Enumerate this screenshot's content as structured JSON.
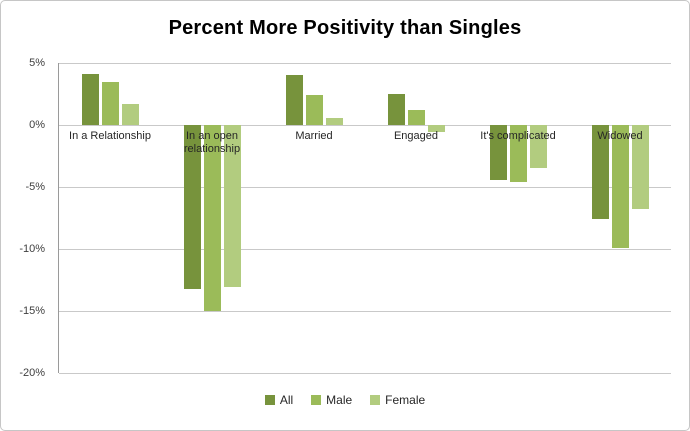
{
  "chart_data": {
    "type": "bar",
    "title": "Percent More Positivity than Singles",
    "categories": [
      "In a Relationship",
      "In an open relationship",
      "Married",
      "Engaged",
      "It's complicated",
      "Widowed"
    ],
    "series": [
      {
        "name": "All",
        "color": "#77933c",
        "values": [
          4.1,
          -13.2,
          4.0,
          2.5,
          -4.4,
          -7.6
        ]
      },
      {
        "name": "Male",
        "color": "#9bbb59",
        "values": [
          3.5,
          -15.0,
          2.4,
          1.2,
          -4.6,
          -9.9
        ]
      },
      {
        "name": "Female",
        "color": "#b2cc7f",
        "values": [
          1.7,
          -13.1,
          0.6,
          -0.6,
          -3.5,
          -6.8
        ]
      }
    ],
    "y_ticks": [
      "5%",
      "0%",
      "-5%",
      "-10%",
      "-15%",
      "-20%"
    ],
    "y_tick_values": [
      5,
      0,
      -5,
      -10,
      -15,
      -20
    ],
    "ylim": [
      -20,
      5
    ],
    "xlabel": "",
    "ylabel": "",
    "grid": true,
    "legend_position": "bottom"
  }
}
